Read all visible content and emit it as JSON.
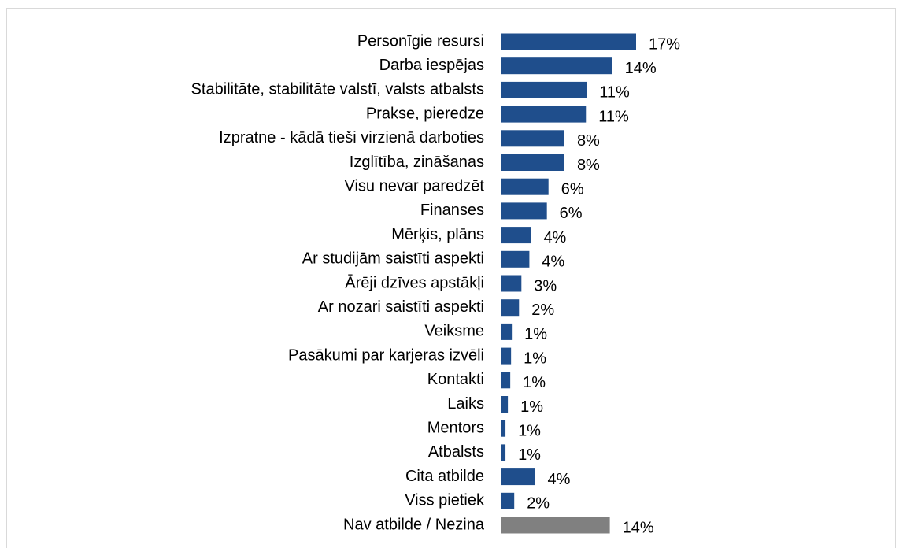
{
  "chart_data": {
    "type": "barh",
    "categories": [
      "Personīgie resursi",
      "Darba iespējas",
      "Stabilitāte, stabilitāte valstī, valsts atbalsts",
      "Prakse, pieredze",
      "Izpratne - kādā tieši virzienā darboties",
      "Izglītība, zināšanas",
      "Visu nevar paredzēt",
      "Finanses",
      "Mērķis, plāns",
      "Ar studijām saistīti aspekti",
      "Ārēji dzīves apstākļi",
      "Ar nozari saistīti aspekti",
      "Veiksme",
      "Pasākumi par karjeras izvēli",
      "Kontakti",
      "Laiks",
      "Mentors",
      "Atbalsts",
      "Cita atbilde",
      "Viss pietiek",
      "Nav atbilde / Nezina"
    ],
    "values": [
      17,
      14,
      10.8,
      10.7,
      8,
      8,
      6,
      5.8,
      3.8,
      3.6,
      2.6,
      2.3,
      1.4,
      1.3,
      1.2,
      0.9,
      0.6,
      0.6,
      4.3,
      1.7,
      13.7
    ],
    "value_labels": [
      "17%",
      "14%",
      "11%",
      "11%",
      "8%",
      "8%",
      "6%",
      "6%",
      "4%",
      "4%",
      "3%",
      "2%",
      "1%",
      "1%",
      "1%",
      "1%",
      "1%",
      "1%",
      "4%",
      "2%",
      "14%"
    ],
    "colors": [
      "#1f4e8c",
      "#1f4e8c",
      "#1f4e8c",
      "#1f4e8c",
      "#1f4e8c",
      "#1f4e8c",
      "#1f4e8c",
      "#1f4e8c",
      "#1f4e8c",
      "#1f4e8c",
      "#1f4e8c",
      "#1f4e8c",
      "#1f4e8c",
      "#1f4e8c",
      "#1f4e8c",
      "#1f4e8c",
      "#1f4e8c",
      "#1f4e8c",
      "#1f4e8c",
      "#1f4e8c",
      "#808080"
    ]
  }
}
